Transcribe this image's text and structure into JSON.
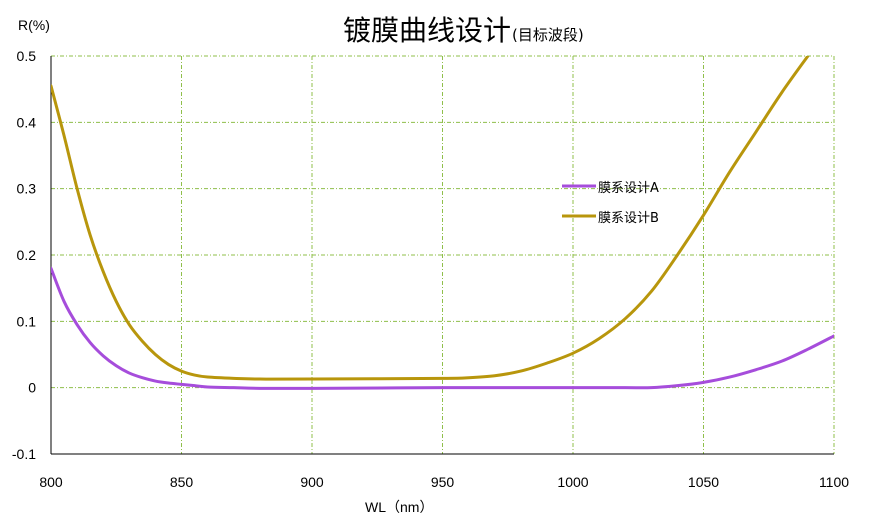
{
  "chart_data": {
    "type": "line",
    "title": "镀膜曲线设计",
    "subtitle": "(目标波段)",
    "xlabel": "WL（nm）",
    "ylabel": "R(%)",
    "xlim": [
      800,
      1100
    ],
    "ylim": [
      -0.1,
      0.5
    ],
    "x_ticks": [
      "800",
      "850",
      "900",
      "950",
      "1000",
      "1050",
      "1100"
    ],
    "y_ticks": [
      "-0.1",
      "0",
      "0.1",
      "0.2",
      "0.3",
      "0.4",
      "0.5"
    ],
    "grid": true,
    "legend_position": "right-center",
    "series": [
      {
        "name": "膜系设计A",
        "color": "#a64ddb",
        "points": [
          [
            800,
            0.18
          ],
          [
            805,
            0.13
          ],
          [
            810,
            0.095
          ],
          [
            815,
            0.068
          ],
          [
            820,
            0.048
          ],
          [
            825,
            0.033
          ],
          [
            830,
            0.022
          ],
          [
            835,
            0.015
          ],
          [
            840,
            0.01
          ],
          [
            845,
            0.007
          ],
          [
            850,
            0.005
          ],
          [
            855,
            0.003
          ],
          [
            860,
            0.001
          ],
          [
            870,
            0.0
          ],
          [
            880,
            -0.001
          ],
          [
            900,
            -0.001
          ],
          [
            950,
            0.0
          ],
          [
            1000,
            0.0
          ],
          [
            1020,
            0.0
          ],
          [
            1030,
            0.0
          ],
          [
            1040,
            0.003
          ],
          [
            1050,
            0.008
          ],
          [
            1060,
            0.016
          ],
          [
            1070,
            0.027
          ],
          [
            1080,
            0.04
          ],
          [
            1090,
            0.058
          ],
          [
            1100,
            0.078
          ]
        ]
      },
      {
        "name": "膜系设计B",
        "color": "#b8960c",
        "points": [
          [
            800,
            0.455
          ],
          [
            805,
            0.38
          ],
          [
            810,
            0.3
          ],
          [
            815,
            0.23
          ],
          [
            820,
            0.175
          ],
          [
            825,
            0.13
          ],
          [
            830,
            0.095
          ],
          [
            835,
            0.07
          ],
          [
            840,
            0.05
          ],
          [
            845,
            0.035
          ],
          [
            850,
            0.025
          ],
          [
            855,
            0.019
          ],
          [
            860,
            0.016
          ],
          [
            870,
            0.014
          ],
          [
            880,
            0.013
          ],
          [
            900,
            0.013
          ],
          [
            950,
            0.014
          ],
          [
            960,
            0.015
          ],
          [
            970,
            0.018
          ],
          [
            980,
            0.025
          ],
          [
            990,
            0.037
          ],
          [
            1000,
            0.052
          ],
          [
            1010,
            0.074
          ],
          [
            1020,
            0.104
          ],
          [
            1030,
            0.145
          ],
          [
            1040,
            0.2
          ],
          [
            1050,
            0.26
          ],
          [
            1060,
            0.325
          ],
          [
            1070,
            0.385
          ],
          [
            1080,
            0.445
          ],
          [
            1090,
            0.5
          ]
        ]
      }
    ]
  }
}
